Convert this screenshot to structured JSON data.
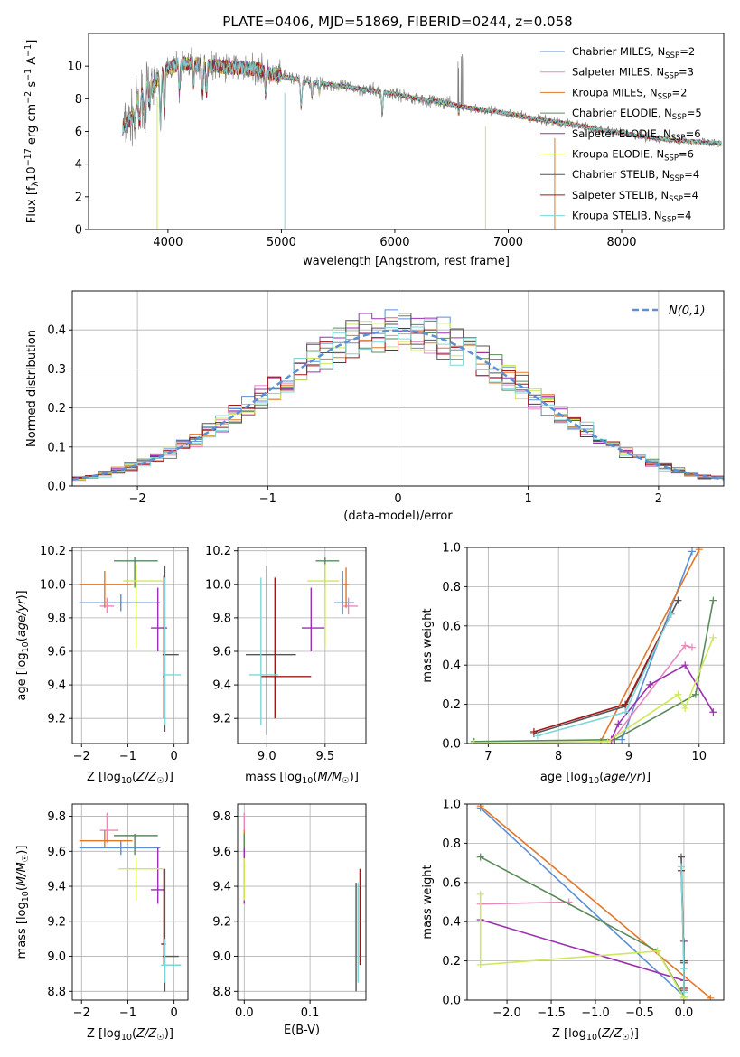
{
  "figure_title": "PLATE=0406, MJD=51869, FIBERID=0244, z=0.058",
  "colors": {
    "Chabrier MILES": "#5b8fd6",
    "Salpeter MILES": "#e887be",
    "Kroupa MILES": "#e0782a",
    "Chabrier ELODIE": "#5b8a5b",
    "Salpeter ELODIE": "#9b30b0",
    "Kroupa ELODIE": "#cde85a",
    "Chabrier STELIB": "#555555",
    "Salpeter STELIB": "#a01818",
    "Kroupa STELIB": "#7fd6d6",
    "data": "#808080",
    "normal": "#5b8fd6"
  },
  "chart_data": [
    {
      "id": "spectrum",
      "type": "line",
      "xlabel": "wavelength [Angstrom, rest frame]",
      "ylabel": "Flux [f_λ10^-17 erg cm^-2 s^-1 A^-1]",
      "xlim": [
        3300,
        8900
      ],
      "ylim": [
        0,
        12
      ],
      "xticks": [
        4000,
        5000,
        6000,
        7000,
        8000
      ],
      "yticks": [
        0,
        2,
        4,
        6,
        8,
        10
      ],
      "grid": false,
      "legend_position": "top-right",
      "continuum": {
        "x": [
          3600,
          3650,
          3700,
          3750,
          3800,
          3850,
          3900,
          3950,
          4000,
          4100,
          4200,
          4300,
          4400,
          4500,
          4600,
          4700,
          4800,
          4900,
          5000,
          5200,
          5400,
          5600,
          5800,
          6000,
          6200,
          6400,
          6600,
          6800,
          7000,
          7200,
          7400,
          7600,
          7800,
          8000,
          8200,
          8400,
          8600,
          8800
        ],
        "y": [
          6.2,
          6.6,
          7.0,
          7.4,
          7.9,
          8.5,
          9.1,
          9.6,
          9.9,
          10.1,
          10.2,
          10.1,
          10.0,
          9.95,
          9.9,
          9.85,
          9.8,
          9.5,
          9.4,
          9.1,
          8.9,
          8.7,
          8.5,
          8.3,
          8.0,
          7.8,
          7.5,
          7.3,
          7.1,
          6.8,
          6.6,
          6.4,
          6.1,
          5.9,
          5.7,
          5.5,
          5.4,
          5.3
        ]
      },
      "series": [
        {
          "name": "Chabrier MILES",
          "nssp": "2"
        },
        {
          "name": "Salpeter MILES",
          "nssp": "3"
        },
        {
          "name": "Kroupa MILES",
          "nssp": "2"
        },
        {
          "name": "Chabrier ELODIE",
          "nssp": "5"
        },
        {
          "name": "Salpeter ELODIE",
          "nssp": "6"
        },
        {
          "name": "Kroupa ELODIE",
          "nssp": "6"
        },
        {
          "name": "Chabrier STELIB",
          "nssp": "4"
        },
        {
          "name": "Salpeter STELIB",
          "nssp": "4"
        },
        {
          "name": "Kroupa STELIB",
          "nssp": "4"
        }
      ]
    },
    {
      "id": "residuals",
      "type": "histogram",
      "xlabel": "(data-model)/error",
      "ylabel": "Normed distribution",
      "xlim": [
        -2.5,
        2.5
      ],
      "ylim": [
        0,
        0.5
      ],
      "xticks": [
        -2,
        -1,
        0,
        1,
        2
      ],
      "yticks": [
        0.0,
        0.1,
        0.2,
        0.3,
        0.4
      ],
      "grid": true,
      "legend_position": "top-right",
      "legend_label": "N(0,1)",
      "bin_width": 0.1
    },
    {
      "id": "age_vs_Z",
      "type": "errorbar",
      "xlabel": "Z [log10(Z/Z☉)]",
      "ylabel": "age [log10(age/yr)]",
      "xlim": [
        -2.2,
        0.3
      ],
      "ylim": [
        9.05,
        10.22
      ],
      "xticks": [
        -2,
        -1,
        0
      ],
      "yticks": [
        9.2,
        9.4,
        9.6,
        9.8,
        10.0,
        10.2
      ],
      "grid": true,
      "points": [
        {
          "s": "Chabrier MILES",
          "x": -1.15,
          "xe": [
            -2.05,
            -0.3
          ],
          "y": 9.89,
          "ye": [
            9.84,
            9.94
          ]
        },
        {
          "s": "Salpeter MILES",
          "x": -1.45,
          "xe": [
            -1.6,
            -1.3
          ],
          "y": 9.87,
          "ye": [
            9.83,
            9.92
          ]
        },
        {
          "s": "Kroupa MILES",
          "x": -1.5,
          "xe": [
            -2.05,
            -0.9
          ],
          "y": 10.0,
          "ye": [
            9.86,
            10.08
          ]
        },
        {
          "s": "Chabrier ELODIE",
          "x": -0.85,
          "xe": [
            -1.3,
            -0.35
          ],
          "y": 10.14,
          "ye": [
            9.98,
            10.16
          ]
        },
        {
          "s": "Salpeter ELODIE",
          "x": -0.35,
          "xe": [
            -0.5,
            -0.15
          ],
          "y": 9.74,
          "ye": [
            9.6,
            9.98
          ]
        },
        {
          "s": "Kroupa ELODIE",
          "x": -0.82,
          "xe": [
            -1.1,
            -0.25
          ],
          "y": 10.02,
          "ye": [
            9.62,
            10.12
          ]
        },
        {
          "s": "Chabrier STELIB",
          "x": -0.2,
          "xe": [
            -0.25,
            0.1
          ],
          "y": 9.58,
          "ye": [
            9.12,
            10.11
          ]
        },
        {
          "s": "Salpeter STELIB",
          "x": -0.22,
          "xe": [
            -0.24,
            -0.2
          ],
          "y": 9.45,
          "ye": [
            9.2,
            10.05
          ]
        },
        {
          "s": "Kroupa STELIB",
          "x": -0.2,
          "xe": [
            -0.25,
            0.15
          ],
          "y": 9.46,
          "ye": [
            9.16,
            10.04
          ]
        }
      ]
    },
    {
      "id": "age_vs_mass",
      "type": "errorbar",
      "xlabel": "mass [log10(M/M☉)]",
      "ylabel": "",
      "xlim": [
        8.75,
        9.85
      ],
      "ylim": [
        9.05,
        10.22
      ],
      "xticks": [
        9.0,
        9.5
      ],
      "yticks": [
        9.2,
        9.4,
        9.6,
        9.8,
        10.0,
        10.2
      ],
      "grid": true,
      "points": [
        {
          "s": "Chabrier MILES",
          "x": 9.65,
          "xe": [
            9.58,
            9.75
          ],
          "y": 9.89,
          "ye": [
            9.82,
            10.08
          ]
        },
        {
          "s": "Salpeter MILES",
          "x": 9.7,
          "xe": [
            9.64,
            9.78
          ],
          "y": 9.87,
          "ye": [
            9.82,
            9.92
          ]
        },
        {
          "s": "Kroupa MILES",
          "x": 9.68,
          "xe": [
            9.65,
            9.7
          ],
          "y": 10.0,
          "ye": [
            9.86,
            10.1
          ]
        },
        {
          "s": "Chabrier ELODIE",
          "x": 9.5,
          "xe": [
            9.42,
            9.62
          ],
          "y": 10.14,
          "ye": [
            9.98,
            10.16
          ]
        },
        {
          "s": "Salpeter ELODIE",
          "x": 9.38,
          "xe": [
            9.3,
            9.5
          ],
          "y": 9.74,
          "ye": [
            9.6,
            9.98
          ]
        },
        {
          "s": "Kroupa ELODIE",
          "x": 9.5,
          "xe": [
            9.35,
            9.62
          ],
          "y": 10.02,
          "ye": [
            9.62,
            10.12
          ]
        },
        {
          "s": "Chabrier STELIB",
          "x": 9.0,
          "xe": [
            8.82,
            9.25
          ],
          "y": 9.58,
          "ye": [
            9.1,
            10.11
          ]
        },
        {
          "s": "Salpeter STELIB",
          "x": 9.07,
          "xe": [
            8.95,
            9.38
          ],
          "y": 9.45,
          "ye": [
            9.2,
            10.04
          ]
        },
        {
          "s": "Kroupa STELIB",
          "x": 8.95,
          "xe": [
            8.85,
            9.1
          ],
          "y": 9.46,
          "ye": [
            9.16,
            10.04
          ]
        }
      ]
    },
    {
      "id": "massweight_vs_age",
      "type": "line",
      "xlabel": "age [log10(age/yr)]",
      "ylabel": "mass weight",
      "xlim": [
        6.7,
        10.35
      ],
      "ylim": [
        0,
        1
      ],
      "xticks": [
        7,
        8,
        9,
        10
      ],
      "yticks": [
        0.0,
        0.2,
        0.4,
        0.6,
        0.8,
        1.0
      ],
      "grid": true,
      "series": [
        {
          "name": "Chabrier MILES",
          "x": [
            8.9,
            9.9
          ],
          "y": [
            0.02,
            0.98
          ]
        },
        {
          "name": "Salpeter MILES",
          "x": [
            8.75,
            9.8,
            9.9
          ],
          "y": [
            0.01,
            0.5,
            0.49
          ]
        },
        {
          "name": "Kroupa MILES",
          "x": [
            8.6,
            10.0
          ],
          "y": [
            0.01,
            0.99
          ]
        },
        {
          "name": "Chabrier ELODIE",
          "x": [
            6.8,
            8.8,
            9.95,
            10.2
          ],
          "y": [
            0.01,
            0.02,
            0.25,
            0.73
          ]
        },
        {
          "name": "Salpeter ELODIE",
          "x": [
            8.75,
            8.85,
            9.3,
            9.8,
            10.2
          ],
          "y": [
            0.02,
            0.1,
            0.3,
            0.4,
            0.16
          ]
        },
        {
          "name": "Kroupa ELODIE",
          "x": [
            6.8,
            8.7,
            9.7,
            9.8,
            10.2
          ],
          "y": [
            0.0,
            0.01,
            0.25,
            0.18,
            0.54
          ]
        },
        {
          "name": "Chabrier STELIB",
          "x": [
            7.65,
            8.95,
            9.7
          ],
          "y": [
            0.05,
            0.19,
            0.73
          ]
        },
        {
          "name": "Salpeter STELIB",
          "x": [
            7.65,
            8.95,
            9.6
          ],
          "y": [
            0.06,
            0.2,
            0.66
          ]
        },
        {
          "name": "Kroupa STELIB",
          "x": [
            7.7,
            8.95,
            9.6
          ],
          "y": [
            0.04,
            0.16,
            0.66
          ]
        }
      ]
    },
    {
      "id": "mass_vs_Z",
      "type": "errorbar",
      "xlabel": "Z [log10(Z/Z☉)]",
      "ylabel": "mass [log10(M/M☉)]",
      "xlim": [
        -2.2,
        0.3
      ],
      "ylim": [
        8.75,
        9.87
      ],
      "xticks": [
        -2,
        -1,
        0
      ],
      "yticks": [
        8.8,
        9.0,
        9.2,
        9.4,
        9.6,
        9.8
      ],
      "grid": true,
      "points": [
        {
          "s": "Chabrier MILES",
          "x": -1.15,
          "xe": [
            -2.05,
            -0.3
          ],
          "y": 9.62,
          "ye": [
            9.58,
            9.66
          ]
        },
        {
          "s": "Salpeter MILES",
          "x": -1.45,
          "xe": [
            -1.6,
            -1.2
          ],
          "y": 9.72,
          "ye": [
            9.65,
            9.82
          ]
        },
        {
          "s": "Kroupa MILES",
          "x": -1.5,
          "xe": [
            -2.05,
            -0.9
          ],
          "y": 9.66,
          "ye": [
            9.62,
            9.72
          ]
        },
        {
          "s": "Chabrier ELODIE",
          "x": -0.85,
          "xe": [
            -1.3,
            -0.35
          ],
          "y": 9.69,
          "ye": [
            9.58,
            9.7
          ]
        },
        {
          "s": "Salpeter ELODIE",
          "x": -0.35,
          "xe": [
            -0.5,
            -0.2
          ],
          "y": 9.38,
          "ye": [
            9.3,
            9.62
          ]
        },
        {
          "s": "Kroupa ELODIE",
          "x": -0.82,
          "xe": [
            -1.2,
            -0.25
          ],
          "y": 9.5,
          "ye": [
            9.32,
            9.56
          ]
        },
        {
          "s": "Chabrier STELIB",
          "x": -0.2,
          "xe": [
            -0.25,
            0.1
          ],
          "y": 9.0,
          "ye": [
            8.8,
            9.5
          ]
        },
        {
          "s": "Salpeter STELIB",
          "x": -0.22,
          "xe": [
            -0.28,
            -0.18
          ],
          "y": 9.07,
          "ye": [
            8.95,
            9.5
          ]
        },
        {
          "s": "Kroupa STELIB",
          "x": -0.2,
          "xe": [
            -0.28,
            0.15
          ],
          "y": 8.95,
          "ye": [
            8.85,
            9.1
          ]
        }
      ]
    },
    {
      "id": "mass_vs_ebv",
      "type": "errorbar",
      "xlabel": "E(B-V)",
      "ylabel": "",
      "xlim": [
        -0.01,
        0.185
      ],
      "ylim": [
        8.75,
        9.87
      ],
      "xticks": [
        0.0,
        0.1
      ],
      "yticks": [
        8.8,
        9.0,
        9.2,
        9.4,
        9.6,
        9.8
      ],
      "grid": true,
      "points": [
        {
          "s": "Chabrier MILES",
          "x": 0.0,
          "xe": [
            0.0,
            0.0
          ],
          "y": 9.62,
          "ye": [
            9.58,
            9.66
          ]
        },
        {
          "s": "Salpeter MILES",
          "x": 0.0,
          "xe": [
            0.0,
            0.0
          ],
          "y": 9.72,
          "ye": [
            9.65,
            9.82
          ]
        },
        {
          "s": "Kroupa MILES",
          "x": 0.0,
          "xe": [
            0.0,
            0.0
          ],
          "y": 9.66,
          "ye": [
            9.62,
            9.72
          ]
        },
        {
          "s": "Chabrier ELODIE",
          "x": 0.0,
          "xe": [
            0.0,
            0.0
          ],
          "y": 9.69,
          "ye": [
            9.58,
            9.7
          ]
        },
        {
          "s": "Salpeter ELODIE",
          "x": 0.0,
          "xe": [
            0.0,
            0.0
          ],
          "y": 9.38,
          "ye": [
            9.3,
            9.62
          ]
        },
        {
          "s": "Kroupa ELODIE",
          "x": 0.0,
          "xe": [
            0.0,
            0.0
          ],
          "y": 9.5,
          "ye": [
            9.32,
            9.56
          ]
        },
        {
          "s": "Chabrier STELIB",
          "x": 0.17,
          "xe": [
            0.17,
            0.17
          ],
          "y": 9.0,
          "ye": [
            8.8,
            9.42
          ]
        },
        {
          "s": "Salpeter STELIB",
          "x": 0.176,
          "xe": [
            0.176,
            0.176
          ],
          "y": 9.07,
          "ye": [
            8.95,
            9.5
          ]
        },
        {
          "s": "Kroupa STELIB",
          "x": 0.173,
          "xe": [
            0.173,
            0.173
          ],
          "y": 8.95,
          "ye": [
            8.85,
            9.42
          ]
        }
      ]
    },
    {
      "id": "massweight_vs_Z",
      "type": "line",
      "xlabel": "Z [log10(Z/Z☉)]",
      "ylabel": "mass weight",
      "xlim": [
        -2.45,
        0.45
      ],
      "ylim": [
        0,
        1
      ],
      "xticks": [
        -2.0,
        -1.5,
        -1.0,
        -0.5,
        0.0
      ],
      "yticks": [
        0.0,
        0.2,
        0.4,
        0.6,
        0.8,
        1.0
      ],
      "grid": true,
      "series": [
        {
          "name": "Chabrier MILES",
          "x": [
            -2.3,
            0.0
          ],
          "y": [
            0.98,
            0.02
          ]
        },
        {
          "name": "Salpeter MILES",
          "x": [
            -2.3,
            -1.3
          ],
          "y": [
            0.49,
            0.5
          ]
        },
        {
          "name": "Kroupa MILES",
          "x": [
            -2.3,
            0.3
          ],
          "y": [
            0.99,
            0.01
          ]
        },
        {
          "name": "Chabrier ELODIE",
          "x": [
            -2.3,
            -0.3,
            0.0
          ],
          "y": [
            0.73,
            0.25,
            0.02
          ]
        },
        {
          "name": "Salpeter ELODIE",
          "x": [
            -2.3,
            0.0,
            0.0
          ],
          "y": [
            0.41,
            0.1,
            0.3
          ]
        },
        {
          "name": "Kroupa ELODIE",
          "x": [
            -2.3,
            -2.3,
            -0.3,
            0.0
          ],
          "y": [
            0.54,
            0.18,
            0.25,
            0.01
          ]
        },
        {
          "name": "Chabrier STELIB",
          "x": [
            -0.03,
            0.0,
            0.0
          ],
          "y": [
            0.73,
            0.19,
            0.05
          ]
        },
        {
          "name": "Salpeter STELIB",
          "x": [
            -0.03,
            0.0,
            0.0
          ],
          "y": [
            0.66,
            0.2,
            0.06
          ]
        },
        {
          "name": "Kroupa STELIB",
          "x": [
            -0.03,
            0.0,
            0.0
          ],
          "y": [
            0.68,
            0.16,
            0.04
          ]
        }
      ]
    }
  ]
}
